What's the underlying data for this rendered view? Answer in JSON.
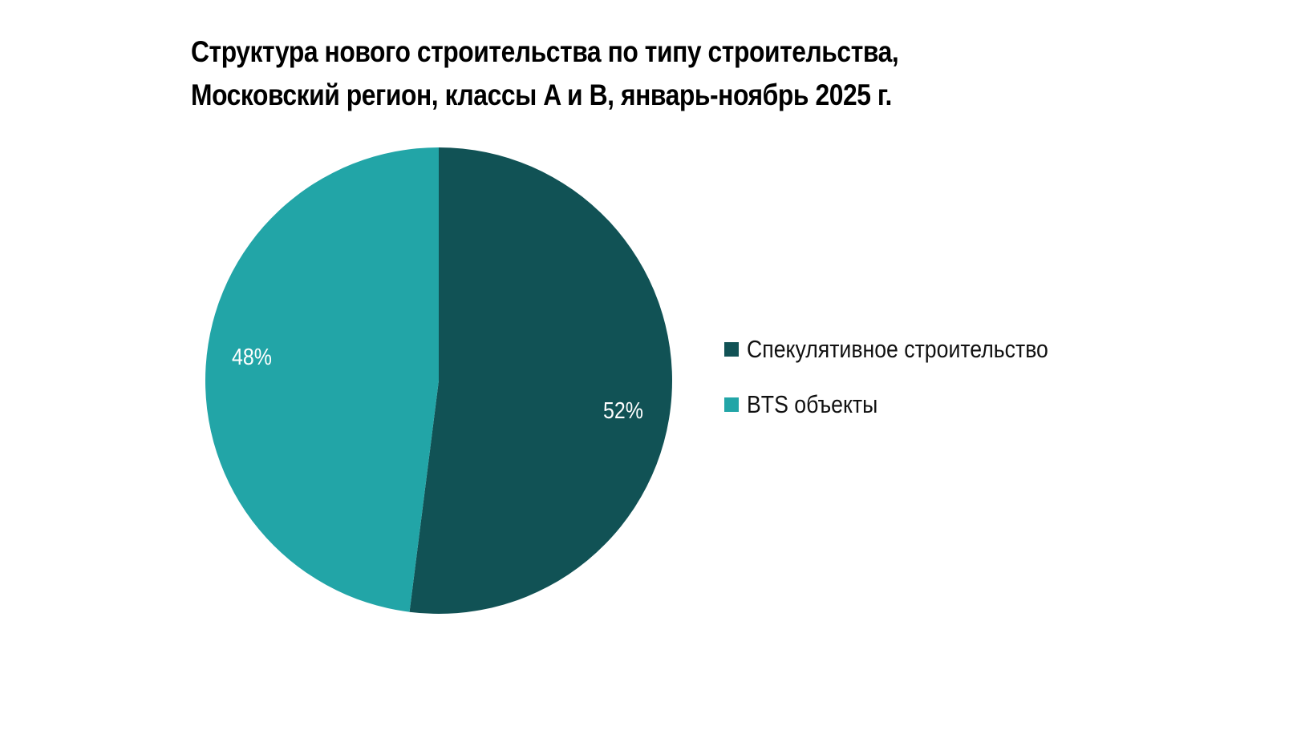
{
  "title_lines": [
    "Структура нового строительства по типу строительства,",
    "Московский регион, классы A и B, январь-ноябрь 2025 г."
  ],
  "legend": [
    {
      "label": "Спекулятивное строительство",
      "color": "#115255"
    },
    {
      "label": "BTS объекты",
      "color": "#22A5A7"
    }
  ],
  "labels": {
    "slice1": "52%",
    "slice2": "48%"
  },
  "chart_data": {
    "type": "pie",
    "title": "Структура нового строительства по типу строительства, Московский регион, классы A и B, январь-ноябрь 2025 г.",
    "categories": [
      "Спекулятивное строительство",
      "BTS объекты"
    ],
    "values": [
      52,
      48
    ],
    "unit": "%",
    "colors": [
      "#115255",
      "#22A5A7"
    ],
    "legend_position": "right",
    "data_labels": [
      "52%",
      "48%"
    ]
  }
}
